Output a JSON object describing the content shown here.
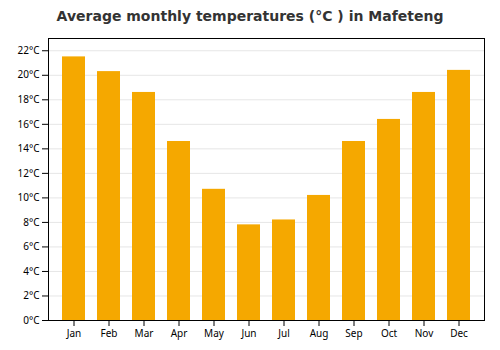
{
  "chart_data": {
    "type": "bar",
    "title": "Average monthly temperatures (°C ) in Mafeteng",
    "categories": [
      "Jan",
      "Feb",
      "Mar",
      "Apr",
      "May",
      "Jun",
      "Jul",
      "Aug",
      "Sep",
      "Oct",
      "Nov",
      "Dec"
    ],
    "values": [
      21.5,
      20.3,
      18.6,
      14.6,
      10.7,
      7.8,
      8.2,
      10.2,
      14.6,
      16.4,
      18.6,
      20.4
    ],
    "color": "#F5A800",
    "ylim": [
      0,
      23
    ],
    "yticks": [
      {
        "value": 0,
        "label": "0°C"
      },
      {
        "value": 2,
        "label": "2°C"
      },
      {
        "value": 4,
        "label": "4°C"
      },
      {
        "value": 6,
        "label": "6°C"
      },
      {
        "value": 8,
        "label": "8°C"
      },
      {
        "value": 10,
        "label": "10°C"
      },
      {
        "value": 12,
        "label": "12°C"
      },
      {
        "value": 14,
        "label": "14°C"
      },
      {
        "value": 16,
        "label": "16°C"
      },
      {
        "value": 18,
        "label": "18°C"
      },
      {
        "value": 20,
        "label": "20°C"
      },
      {
        "value": 22,
        "label": "22°C"
      }
    ],
    "grid": true
  }
}
